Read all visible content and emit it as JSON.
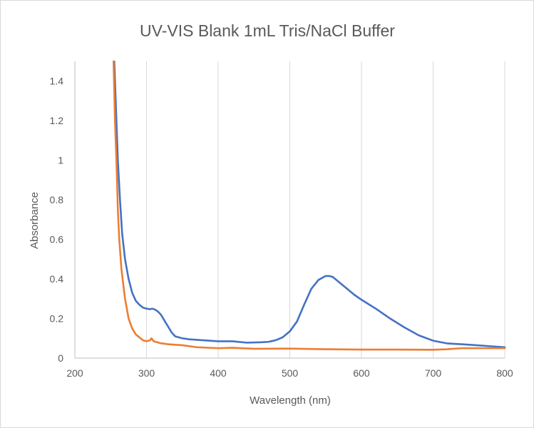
{
  "chart_data": {
    "type": "line",
    "title": "UV-VIS Blank 1mL Tris/NaCl Buffer",
    "xlabel": "Wavelength (nm)",
    "ylabel": "Absorbance",
    "xlim": [
      200,
      800
    ],
    "ylim": [
      0,
      1.5
    ],
    "x_ticks": [
      200,
      300,
      400,
      500,
      600,
      700,
      800
    ],
    "y_ticks": [
      0,
      0.2,
      0.4,
      0.6,
      0.8,
      1,
      1.2,
      1.4
    ],
    "x_tick_labels": [
      "200",
      "300",
      "400",
      "500",
      "600",
      "700",
      "800"
    ],
    "y_tick_labels": [
      "0",
      "0.2",
      "0.4",
      "0.6",
      "0.8",
      "1",
      "1.2",
      "1.4"
    ],
    "grid": "vertical",
    "legend": "none",
    "series": [
      {
        "color": "#4472C4",
        "points": [
          [
            255,
            1.5
          ],
          [
            258,
            1.2
          ],
          [
            260,
            1.0
          ],
          [
            263,
            0.8
          ],
          [
            266,
            0.63
          ],
          [
            270,
            0.5
          ],
          [
            275,
            0.4
          ],
          [
            280,
            0.33
          ],
          [
            285,
            0.29
          ],
          [
            290,
            0.27
          ],
          [
            295,
            0.255
          ],
          [
            300,
            0.25
          ],
          [
            305,
            0.247
          ],
          [
            308,
            0.25
          ],
          [
            312,
            0.245
          ],
          [
            316,
            0.235
          ],
          [
            320,
            0.22
          ],
          [
            325,
            0.19
          ],
          [
            330,
            0.16
          ],
          [
            335,
            0.13
          ],
          [
            340,
            0.11
          ],
          [
            350,
            0.1
          ],
          [
            360,
            0.095
          ],
          [
            380,
            0.09
          ],
          [
            400,
            0.085
          ],
          [
            420,
            0.085
          ],
          [
            440,
            0.078
          ],
          [
            460,
            0.08
          ],
          [
            470,
            0.082
          ],
          [
            480,
            0.09
          ],
          [
            490,
            0.105
          ],
          [
            500,
            0.135
          ],
          [
            510,
            0.185
          ],
          [
            520,
            0.27
          ],
          [
            530,
            0.35
          ],
          [
            540,
            0.395
          ],
          [
            550,
            0.415
          ],
          [
            555,
            0.415
          ],
          [
            560,
            0.41
          ],
          [
            570,
            0.38
          ],
          [
            580,
            0.35
          ],
          [
            590,
            0.32
          ],
          [
            600,
            0.295
          ],
          [
            620,
            0.25
          ],
          [
            640,
            0.2
          ],
          [
            660,
            0.155
          ],
          [
            680,
            0.115
          ],
          [
            700,
            0.088
          ],
          [
            720,
            0.074
          ],
          [
            740,
            0.07
          ],
          [
            760,
            0.065
          ],
          [
            780,
            0.06
          ],
          [
            800,
            0.055
          ]
        ]
      },
      {
        "color": "#ED7D31",
        "points": [
          [
            254,
            1.5
          ],
          [
            256,
            1.2
          ],
          [
            258,
            1.0
          ],
          [
            260,
            0.75
          ],
          [
            262,
            0.6
          ],
          [
            265,
            0.45
          ],
          [
            270,
            0.3
          ],
          [
            275,
            0.2
          ],
          [
            280,
            0.15
          ],
          [
            285,
            0.12
          ],
          [
            290,
            0.105
          ],
          [
            295,
            0.09
          ],
          [
            300,
            0.085
          ],
          [
            305,
            0.09
          ],
          [
            307,
            0.1
          ],
          [
            310,
            0.085
          ],
          [
            320,
            0.075
          ],
          [
            330,
            0.07
          ],
          [
            350,
            0.065
          ],
          [
            370,
            0.055
          ],
          [
            400,
            0.05
          ],
          [
            420,
            0.052
          ],
          [
            450,
            0.047
          ],
          [
            500,
            0.048
          ],
          [
            550,
            0.045
          ],
          [
            600,
            0.043
          ],
          [
            650,
            0.043
          ],
          [
            700,
            0.042
          ],
          [
            720,
            0.045
          ],
          [
            740,
            0.05
          ],
          [
            770,
            0.05
          ],
          [
            800,
            0.05
          ]
        ]
      }
    ]
  }
}
